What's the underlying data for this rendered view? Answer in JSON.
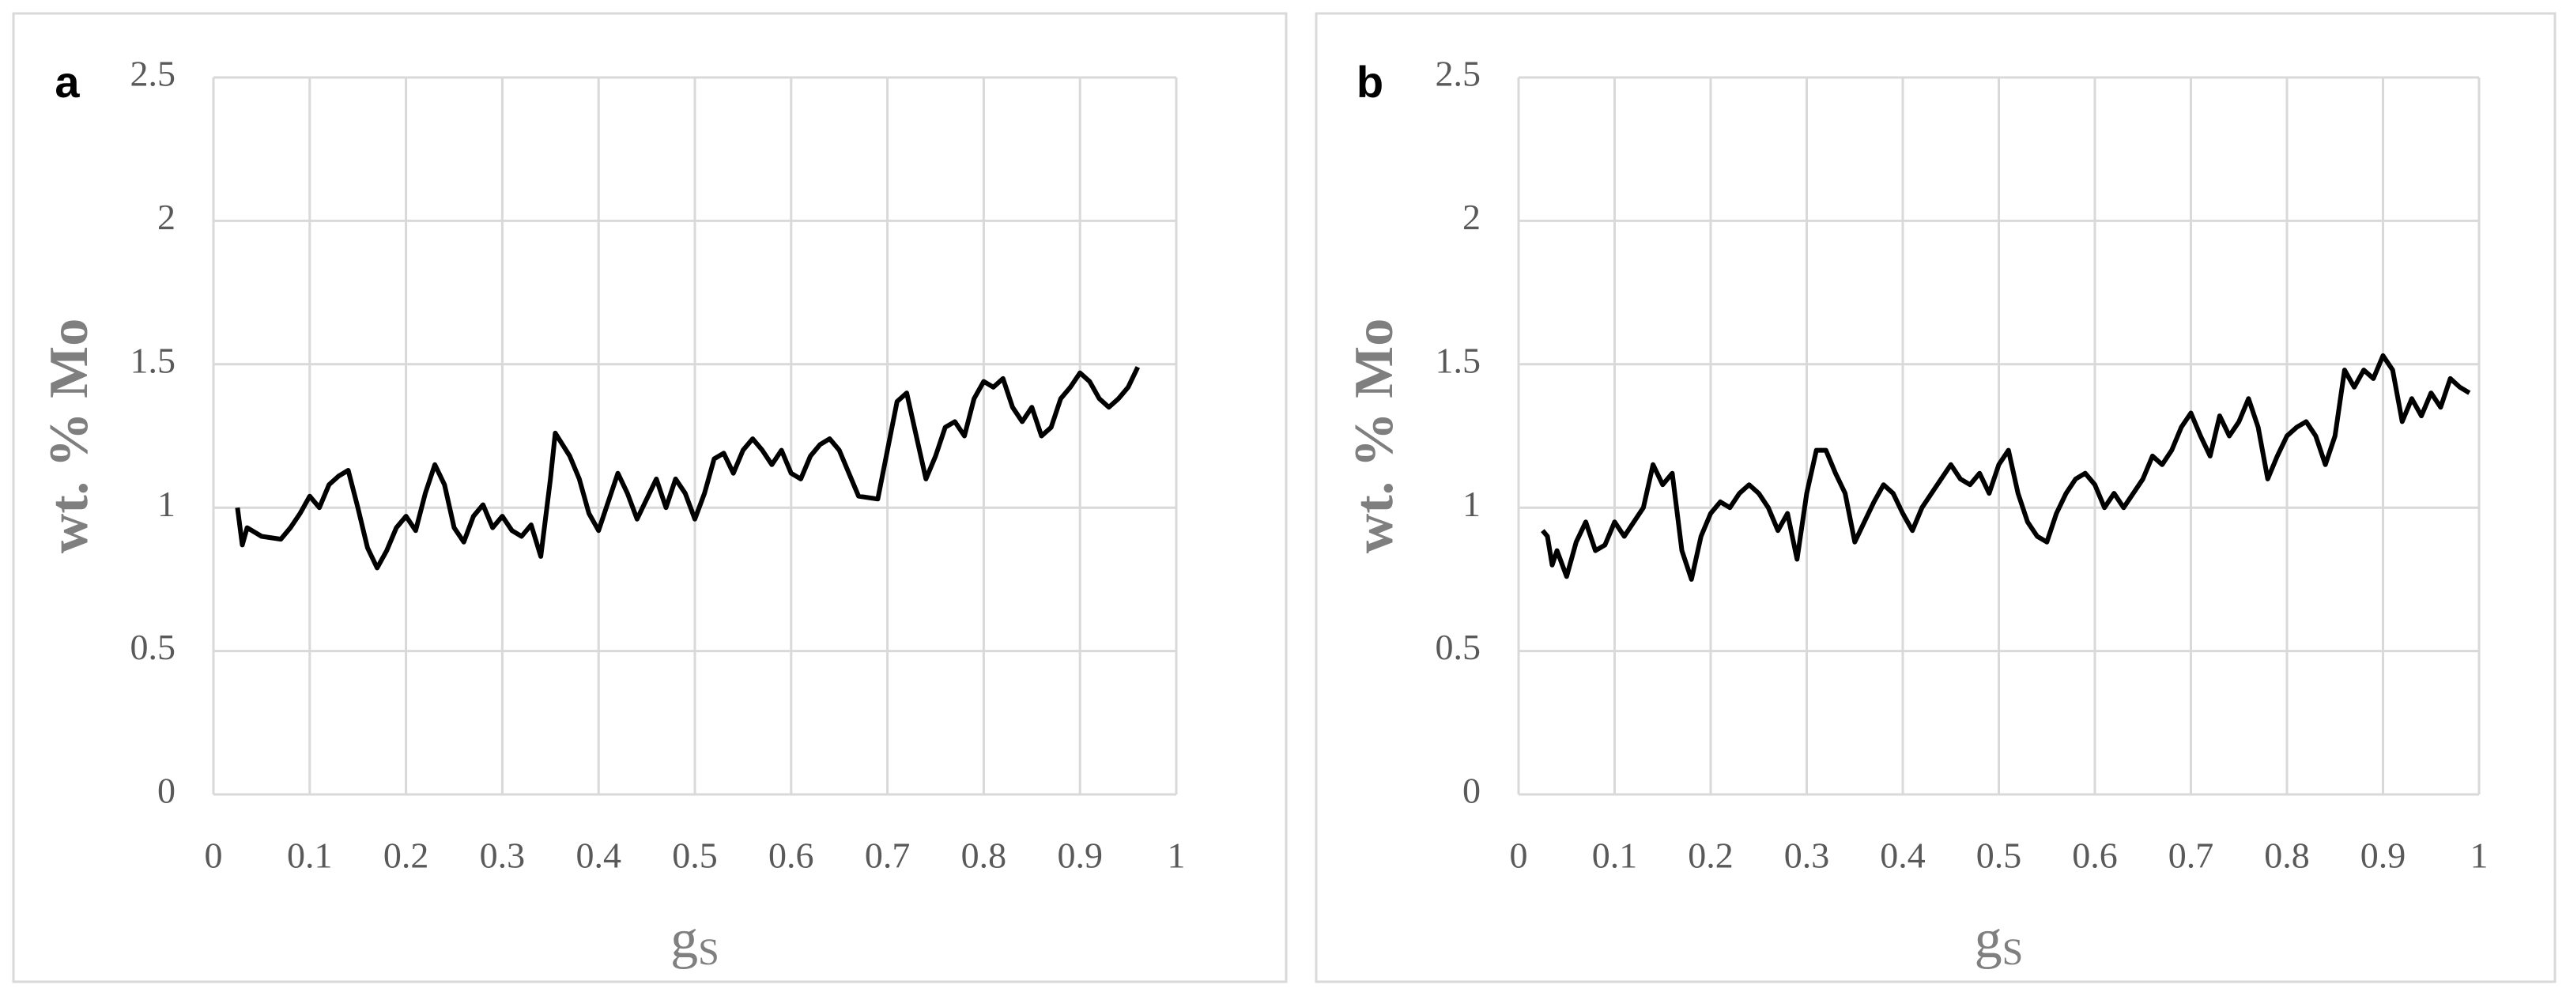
{
  "chart_data": [
    {
      "type": "line",
      "panel_label": "a",
      "ylabel": "wt. % Mo",
      "xlabel": {
        "main": "g",
        "sub": "S"
      },
      "x": [
        0.025,
        0.03,
        0.035,
        0.05,
        0.07,
        0.08,
        0.09,
        0.1,
        0.11,
        0.12,
        0.13,
        0.14,
        0.15,
        0.16,
        0.17,
        0.18,
        0.19,
        0.2,
        0.21,
        0.22,
        0.23,
        0.24,
        0.25,
        0.26,
        0.27,
        0.28,
        0.29,
        0.3,
        0.31,
        0.32,
        0.33,
        0.34,
        0.35,
        0.355,
        0.37,
        0.38,
        0.39,
        0.4,
        0.41,
        0.42,
        0.43,
        0.44,
        0.45,
        0.46,
        0.47,
        0.48,
        0.49,
        0.5,
        0.51,
        0.52,
        0.53,
        0.54,
        0.55,
        0.56,
        0.57,
        0.58,
        0.59,
        0.6,
        0.61,
        0.62,
        0.63,
        0.64,
        0.65,
        0.66,
        0.67,
        0.69,
        0.7,
        0.71,
        0.72,
        0.73,
        0.74,
        0.75,
        0.76,
        0.77,
        0.78,
        0.79,
        0.8,
        0.81,
        0.82,
        0.83,
        0.84,
        0.85,
        0.86,
        0.87,
        0.88,
        0.89,
        0.9,
        0.91,
        0.92,
        0.93,
        0.94,
        0.95,
        0.96
      ],
      "series": [
        {
          "color": "#000000",
          "values": [
            1.0,
            0.87,
            0.93,
            0.9,
            0.89,
            0.93,
            0.98,
            1.04,
            1.0,
            1.08,
            1.11,
            1.13,
            1.0,
            0.86,
            0.79,
            0.85,
            0.93,
            0.97,
            0.92,
            1.05,
            1.15,
            1.08,
            0.93,
            0.88,
            0.97,
            1.01,
            0.93,
            0.97,
            0.92,
            0.9,
            0.94,
            0.83,
            1.1,
            1.26,
            1.18,
            1.1,
            0.98,
            0.92,
            1.02,
            1.12,
            1.05,
            0.96,
            1.03,
            1.1,
            1.0,
            1.1,
            1.05,
            0.96,
            1.05,
            1.17,
            1.19,
            1.12,
            1.2,
            1.24,
            1.2,
            1.15,
            1.2,
            1.12,
            1.1,
            1.18,
            1.22,
            1.24,
            1.2,
            1.12,
            1.04,
            1.03,
            1.2,
            1.37,
            1.4,
            1.25,
            1.1,
            1.18,
            1.28,
            1.3,
            1.25,
            1.38,
            1.44,
            1.42,
            1.45,
            1.35,
            1.3,
            1.35,
            1.25,
            1.28,
            1.38,
            1.42,
            1.47,
            1.44,
            1.38,
            1.35,
            1.38,
            1.42,
            1.49
          ]
        }
      ],
      "xlim": [
        0,
        1
      ],
      "ylim": [
        0,
        2.5
      ],
      "xticks": [
        0,
        0.1,
        0.2,
        0.3,
        0.4,
        0.5,
        0.6,
        0.7,
        0.8,
        0.9,
        1
      ],
      "yticks": [
        0,
        0.5,
        1,
        1.5,
        2,
        2.5
      ],
      "grid": true
    },
    {
      "type": "line",
      "panel_label": "b",
      "ylabel": "wt. % Mo",
      "xlabel": {
        "main": "g",
        "sub": "S"
      },
      "x": [
        0.025,
        0.03,
        0.035,
        0.04,
        0.05,
        0.06,
        0.07,
        0.08,
        0.09,
        0.1,
        0.11,
        0.12,
        0.13,
        0.14,
        0.15,
        0.16,
        0.17,
        0.18,
        0.19,
        0.2,
        0.21,
        0.22,
        0.23,
        0.24,
        0.25,
        0.26,
        0.27,
        0.28,
        0.29,
        0.3,
        0.31,
        0.32,
        0.33,
        0.34,
        0.35,
        0.36,
        0.37,
        0.38,
        0.39,
        0.4,
        0.41,
        0.42,
        0.43,
        0.44,
        0.45,
        0.46,
        0.47,
        0.48,
        0.49,
        0.5,
        0.51,
        0.52,
        0.53,
        0.54,
        0.55,
        0.56,
        0.57,
        0.58,
        0.59,
        0.6,
        0.61,
        0.62,
        0.63,
        0.64,
        0.65,
        0.66,
        0.67,
        0.68,
        0.69,
        0.7,
        0.71,
        0.72,
        0.73,
        0.74,
        0.75,
        0.76,
        0.77,
        0.78,
        0.79,
        0.8,
        0.81,
        0.82,
        0.83,
        0.84,
        0.85,
        0.86,
        0.87,
        0.88,
        0.89,
        0.9,
        0.91,
        0.92,
        0.93,
        0.94,
        0.95,
        0.96,
        0.97,
        0.98,
        0.99
      ],
      "series": [
        {
          "color": "#000000",
          "values": [
            0.92,
            0.9,
            0.8,
            0.85,
            0.76,
            0.88,
            0.95,
            0.85,
            0.87,
            0.95,
            0.9,
            0.95,
            1.0,
            1.15,
            1.08,
            1.12,
            0.85,
            0.75,
            0.9,
            0.98,
            1.02,
            1.0,
            1.05,
            1.08,
            1.05,
            1.0,
            0.92,
            0.98,
            0.82,
            1.05,
            1.2,
            1.2,
            1.12,
            1.05,
            0.88,
            0.95,
            1.02,
            1.08,
            1.05,
            0.98,
            0.92,
            1.0,
            1.05,
            1.1,
            1.15,
            1.1,
            1.08,
            1.12,
            1.05,
            1.15,
            1.2,
            1.05,
            0.95,
            0.9,
            0.88,
            0.98,
            1.05,
            1.1,
            1.12,
            1.08,
            1.0,
            1.05,
            1.0,
            1.05,
            1.1,
            1.18,
            1.15,
            1.2,
            1.28,
            1.33,
            1.25,
            1.18,
            1.32,
            1.25,
            1.3,
            1.38,
            1.28,
            1.1,
            1.18,
            1.25,
            1.28,
            1.3,
            1.25,
            1.15,
            1.25,
            1.48,
            1.42,
            1.48,
            1.45,
            1.53,
            1.48,
            1.3,
            1.38,
            1.32,
            1.4,
            1.35,
            1.45,
            1.42,
            1.4
          ]
        }
      ],
      "xlim": [
        0,
        1
      ],
      "ylim": [
        0,
        2.5
      ],
      "xticks": [
        0,
        0.1,
        0.2,
        0.3,
        0.4,
        0.5,
        0.6,
        0.7,
        0.8,
        0.9,
        1
      ],
      "yticks": [
        0,
        0.5,
        1,
        1.5,
        2,
        2.5
      ],
      "grid": true
    }
  ]
}
